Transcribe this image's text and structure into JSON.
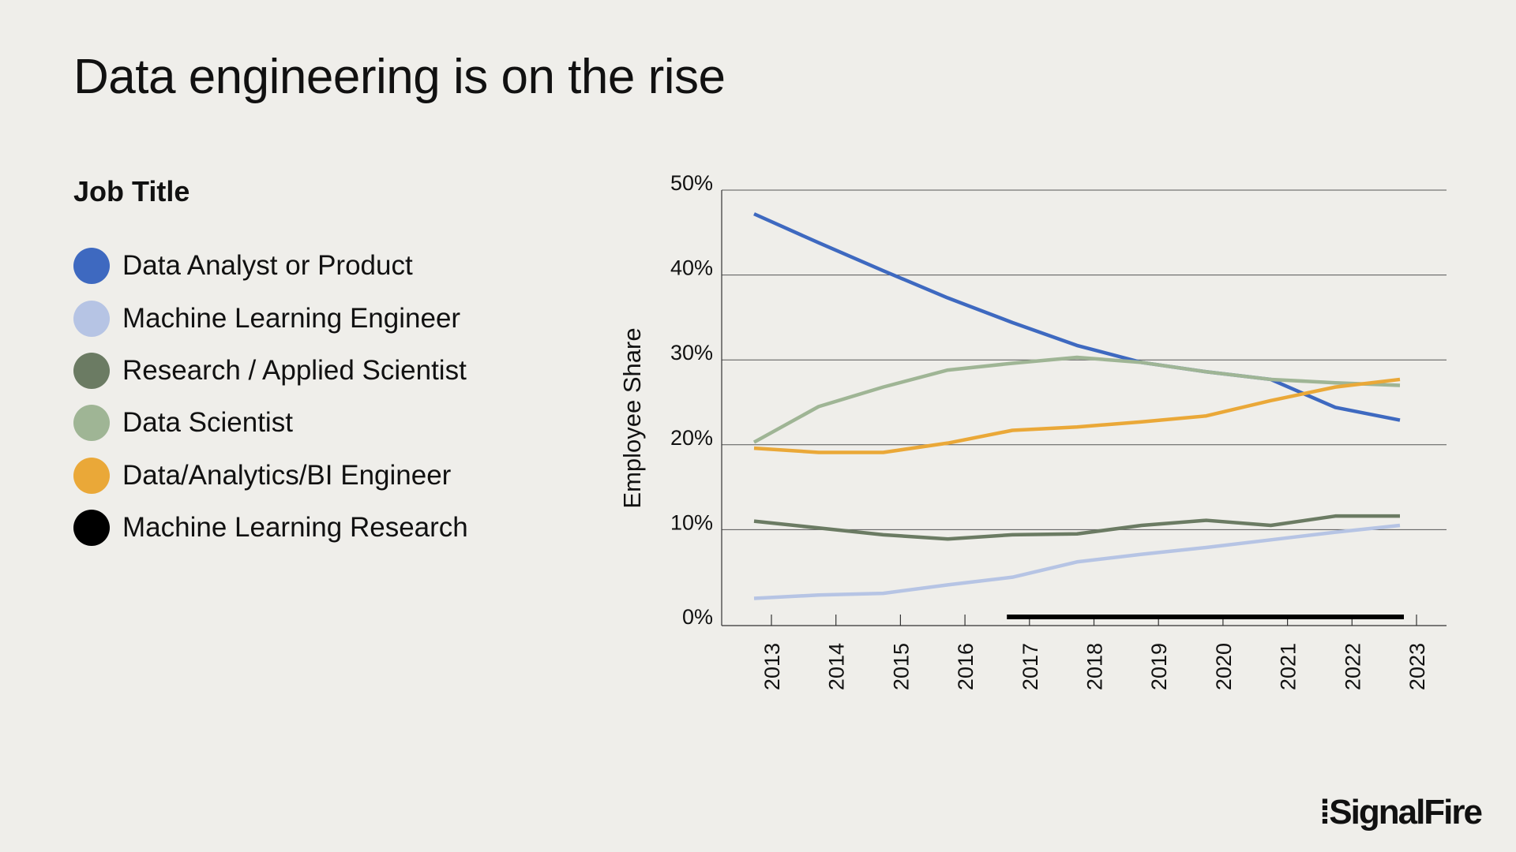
{
  "title": "Data engineering is on the rise",
  "logo": "SignalFire",
  "chart_data": {
    "type": "line",
    "title": "",
    "legend_title": "Job Title",
    "legend_position": "left",
    "xlabel": "",
    "ylabel": "Employee Share",
    "ylim": [
      0,
      50
    ],
    "yticks": [
      "0%",
      "10%",
      "20%",
      "30%",
      "40%",
      "50%"
    ],
    "grid": "horizontal",
    "x": [
      "2013",
      "2014",
      "2015",
      "2016",
      "2017",
      "2018",
      "2019",
      "2020",
      "2021",
      "2022",
      "2023"
    ],
    "series": [
      {
        "name": "Data Analyst or Product",
        "color": "#3e69c0",
        "values": [
          47.2,
          43.8,
          40.5,
          37.3,
          34.4,
          31.7,
          29.7,
          28.6,
          27.7,
          24.4,
          22.9
        ]
      },
      {
        "name": "Machine Learning Engineer",
        "color": "#b6c4e4",
        "values": [
          1.9,
          2.3,
          2.5,
          3.5,
          4.4,
          6.2,
          7.1,
          7.9,
          8.8,
          9.7,
          10.5
        ]
      },
      {
        "name": "Research / Applied Scientist",
        "color": "#6b7b63",
        "values": [
          11.0,
          10.2,
          9.4,
          8.9,
          9.4,
          9.5,
          10.5,
          11.1,
          10.5,
          11.6,
          11.6
        ]
      },
      {
        "name": "Data Scientist",
        "color": "#9fb595",
        "values": [
          20.3,
          24.5,
          26.8,
          28.8,
          29.6,
          30.3,
          29.7,
          28.6,
          27.7,
          27.3,
          27.0
        ]
      },
      {
        "name": "Data/Analytics/BI Engineer",
        "color": "#eaa838",
        "values": [
          19.6,
          19.1,
          19.1,
          20.2,
          21.7,
          22.1,
          22.7,
          23.4,
          25.2,
          26.8,
          27.7
        ]
      },
      {
        "name": "Machine Learning Research",
        "color": "#000000",
        "values": [
          null,
          null,
          null,
          null,
          0,
          0,
          0,
          0,
          0,
          0,
          0
        ]
      }
    ]
  }
}
